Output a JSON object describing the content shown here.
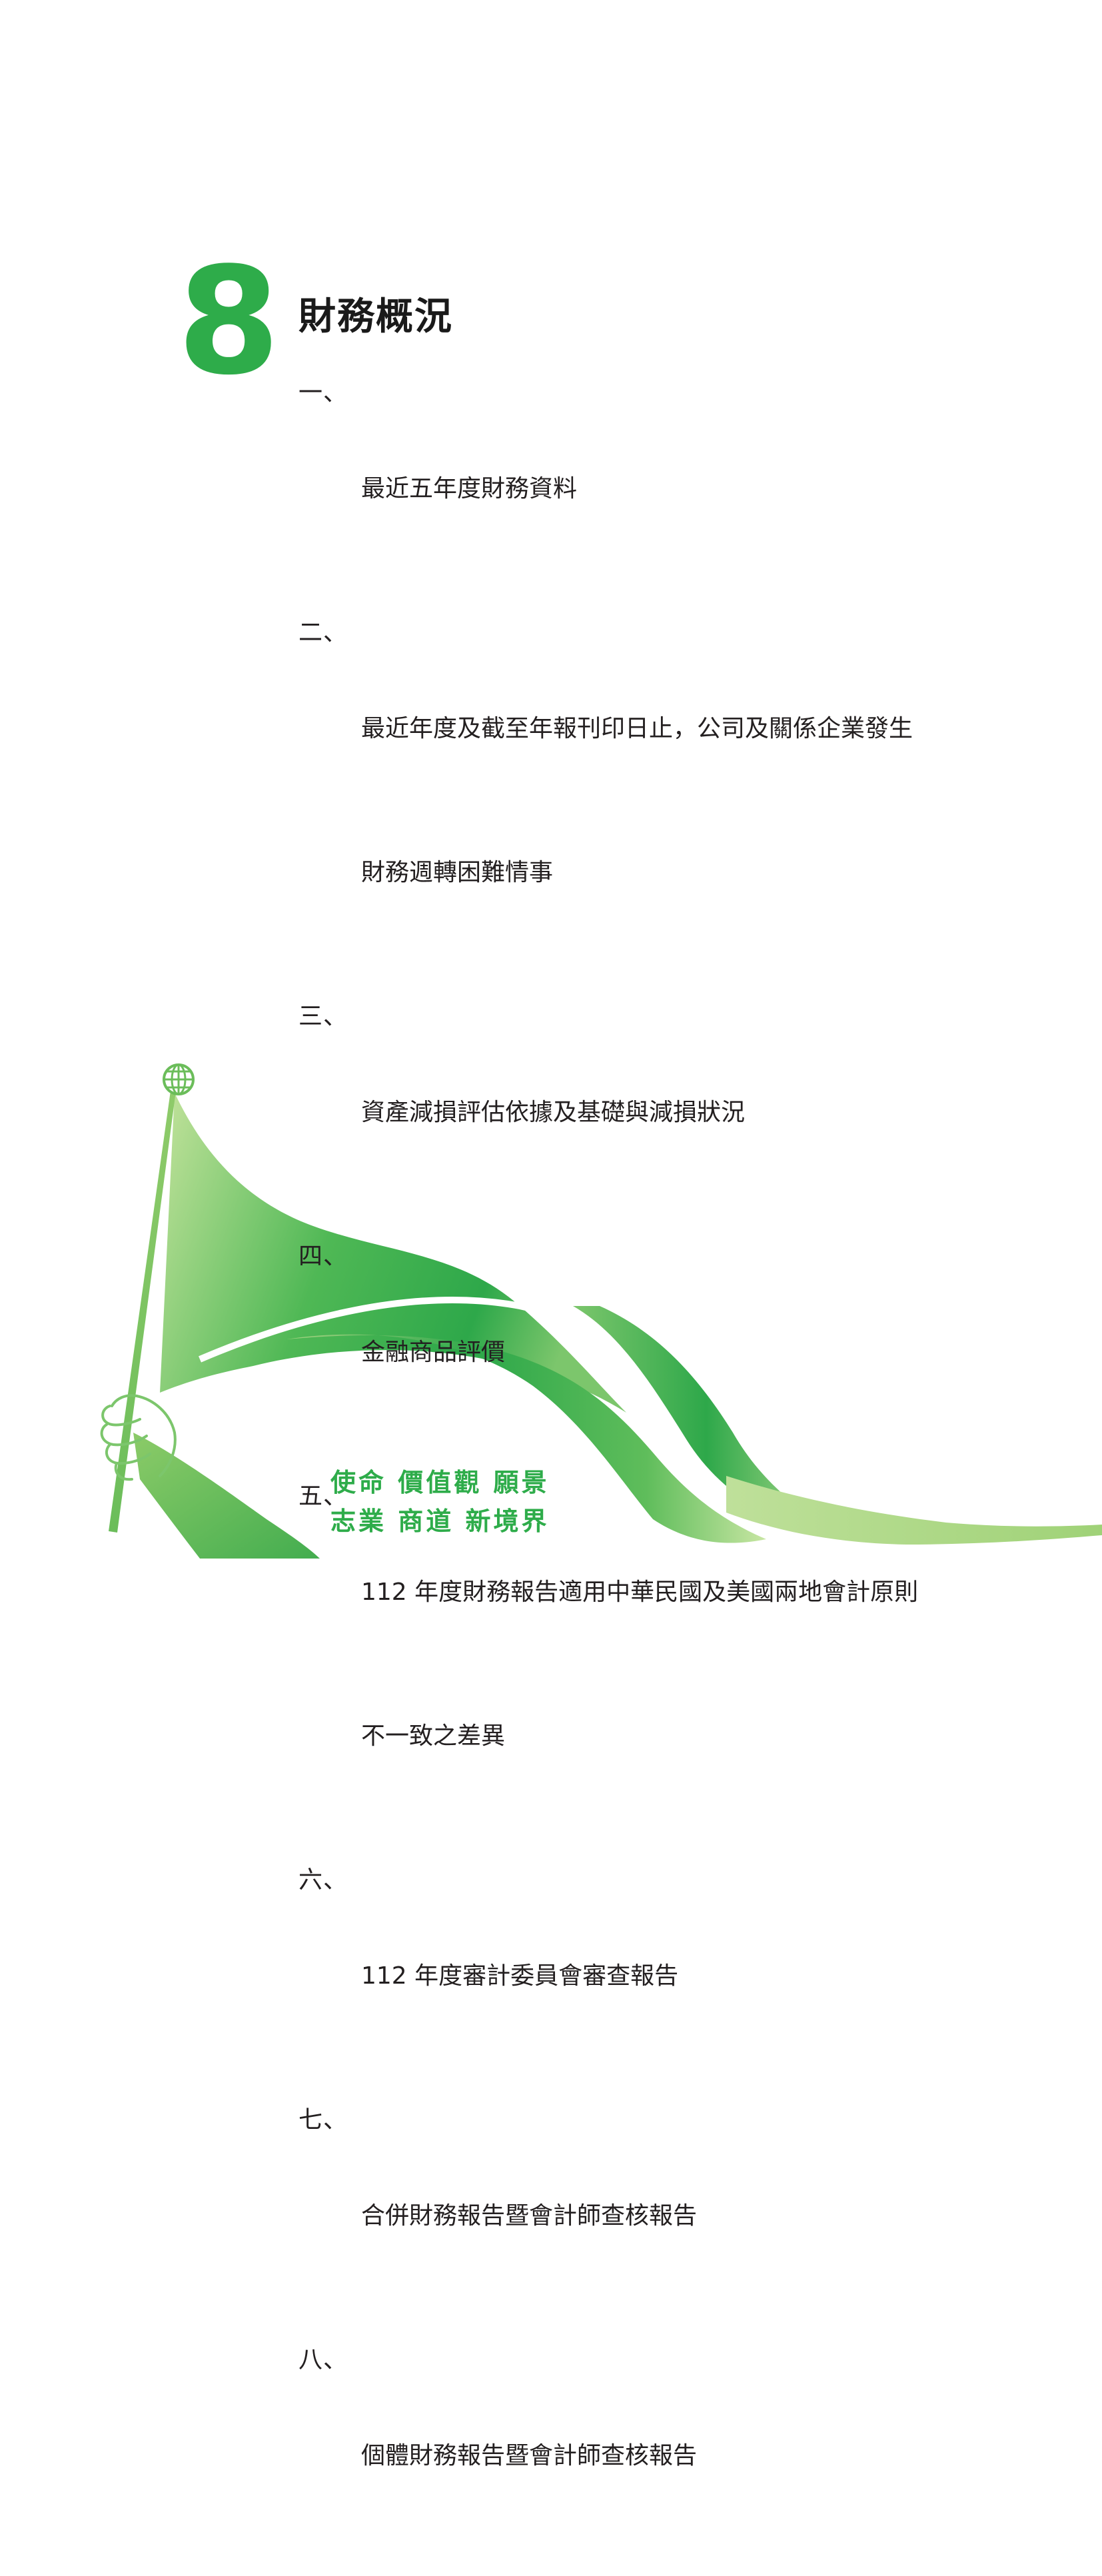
{
  "chapter": {
    "number": "8",
    "title": "財務概況"
  },
  "toc": {
    "items": [
      {
        "num": "一、",
        "lines": [
          "最近五年度財務資料"
        ]
      },
      {
        "num": "二、",
        "lines": [
          "最近年度及截至年報刊印日止，公司及關係企業發生",
          "財務週轉困難情事"
        ]
      },
      {
        "num": "三、",
        "lines": [
          "資產減損評估依據及基礎與減損狀況"
        ]
      },
      {
        "num": "四、",
        "lines": [
          "金融商品評價"
        ]
      },
      {
        "num": "五、",
        "lines": [
          "112 年度財務報告適用中華民國及美國兩地會計原則",
          "不一致之差異"
        ]
      },
      {
        "num": "六、",
        "lines": [
          "112 年度審計委員會審查報告"
        ]
      },
      {
        "num": "七、",
        "lines": [
          "合併財務報告暨會計師查核報告"
        ]
      },
      {
        "num": "八、",
        "lines": [
          "個體財務報告暨會計師查核報告"
        ]
      }
    ]
  },
  "slogan": {
    "line1": "使命 價值觀 願景",
    "line2": "志業 商道 新境界"
  },
  "colors": {
    "accent": "#2eac4a",
    "light_green": "#b9dc8f",
    "text": "#231f20"
  },
  "icons": [
    "globe-icon",
    "flag-illustration",
    "hand-illustration"
  ]
}
